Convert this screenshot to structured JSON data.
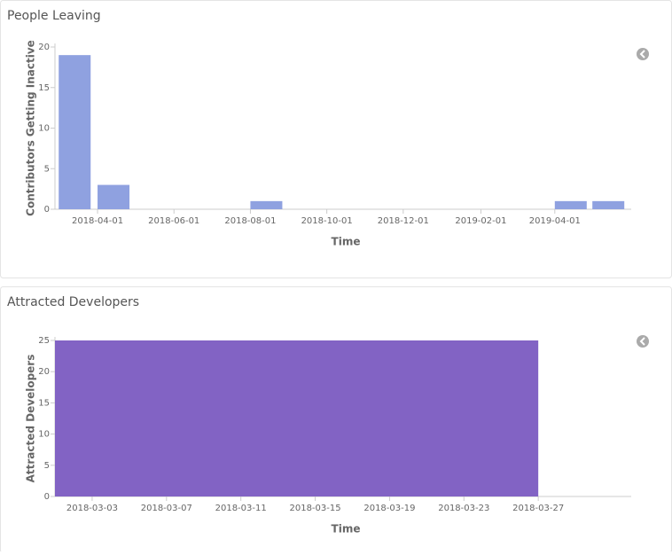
{
  "chart_data": [
    {
      "type": "bar",
      "title": "People Leaving",
      "y_label": "Contributors Getting Inactive",
      "x_label": "Time",
      "x": [
        "2018-03-01",
        "2018-04-01",
        "2018-08-01",
        "2019-04-01",
        "2019-05-01"
      ],
      "values": [
        19,
        3,
        1,
        1,
        1
      ],
      "color": "#8fa1e0",
      "xlim": [
        "2018-02-26",
        "2019-06-01"
      ],
      "xticks": [
        "2018-04-01",
        "2018-06-01",
        "2018-08-01",
        "2018-10-01",
        "2018-12-01",
        "2019-02-01",
        "2019-04-01"
      ],
      "ylim": [
        0,
        20
      ],
      "yticks": [
        0,
        5,
        10,
        15,
        20
      ]
    },
    {
      "type": "histogram",
      "title": "Attracted Developers",
      "y_label": "Attracted Developers",
      "x_label": "Time",
      "bins": [
        "2018-03-01",
        "2018-03-27"
      ],
      "values": [
        25
      ],
      "color": "#8263c4",
      "xlim": [
        "2018-03-01",
        "2018-04-01"
      ],
      "xticks": [
        "2018-03-03",
        "2018-03-07",
        "2018-03-11",
        "2018-03-15",
        "2018-03-19",
        "2018-03-23",
        "2018-03-27"
      ],
      "ylim": [
        0,
        25
      ],
      "yticks": [
        0,
        5,
        10,
        15,
        20,
        25
      ]
    }
  ]
}
